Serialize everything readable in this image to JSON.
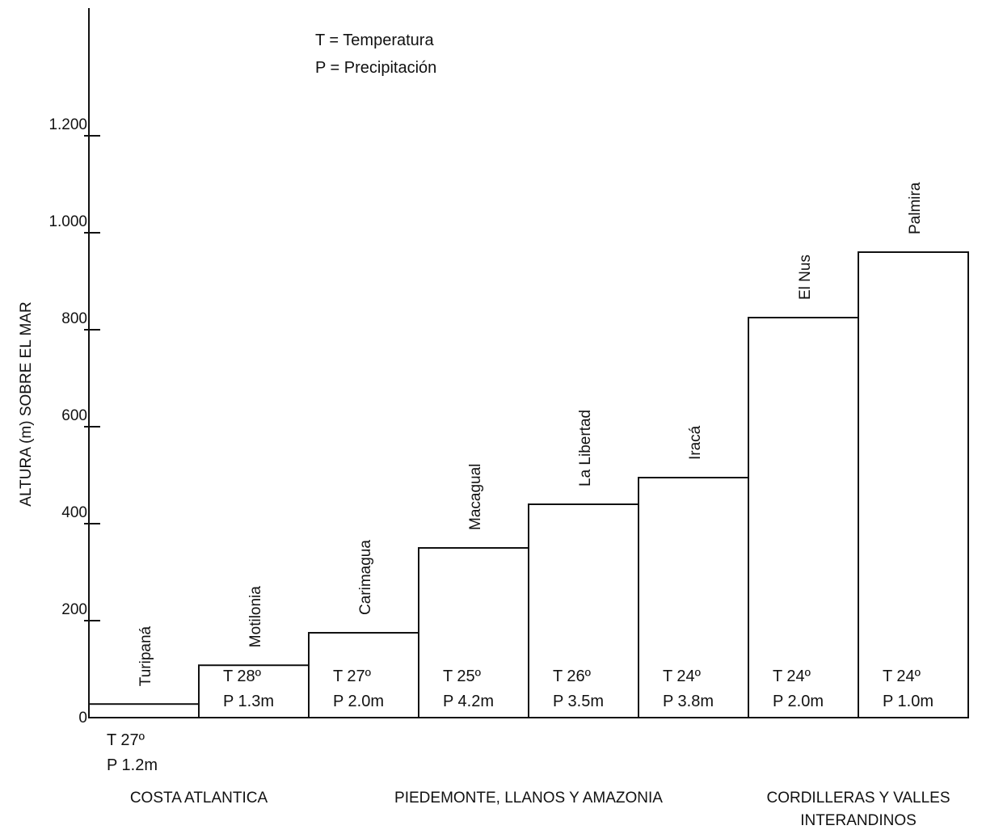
{
  "legend": {
    "line1": "T = Temperatura",
    "line2": "P = Precipitación"
  },
  "chart_data": {
    "type": "bar",
    "ylabel": "ALTURA (m) SOBRE EL MAR",
    "ylim": [
      0,
      1400
    ],
    "y_ticks": [
      0,
      200,
      400,
      600,
      800,
      1000,
      1200
    ],
    "y_tick_labels": [
      "0",
      "200",
      "400",
      "600",
      "800",
      "1.000",
      "1.200"
    ],
    "categories": [
      "Turipaná",
      "Motilonia",
      "Carimagua",
      "Macagual",
      "La Libertad",
      "Iracá",
      "El Nus",
      "Palmira"
    ],
    "values": [
      28,
      108,
      175,
      350,
      440,
      495,
      825,
      960
    ],
    "temperature_labels": [
      "T 27º",
      "T 28º",
      "T 27º",
      "T 25º",
      "T 26º",
      "T 24º",
      "T 24º",
      "T 24º"
    ],
    "precipitation_labels": [
      "P 1.2m",
      "P 1.3m",
      "P 2.0m",
      "P 4.2m",
      "P 3.5m",
      "P 3.8m",
      "P 2.0m",
      "P 1.0m"
    ],
    "regions": [
      {
        "lines": [
          "COSTA ATLANTICA"
        ]
      },
      {
        "lines": [
          "PIEDEMONTE, LLANOS Y AMAZONIA"
        ]
      },
      {
        "lines": [
          "CORDILLERAS Y VALLES",
          "INTERANDINOS"
        ]
      }
    ]
  }
}
